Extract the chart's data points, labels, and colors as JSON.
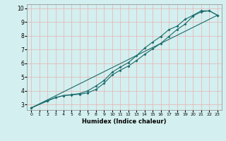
{
  "title": "",
  "xlabel": "Humidex (Indice chaleur)",
  "ylabel": "",
  "bg_color": "#d4efef",
  "grid_color": "#e8b0b0",
  "line_color": "#1a6b6b",
  "xlim": [
    -0.5,
    23.5
  ],
  "ylim": [
    2.6,
    10.3
  ],
  "xticks": [
    0,
    1,
    2,
    3,
    4,
    5,
    6,
    7,
    8,
    9,
    10,
    11,
    12,
    13,
    14,
    15,
    16,
    17,
    18,
    19,
    20,
    21,
    22,
    23
  ],
  "yticks": [
    3,
    4,
    5,
    6,
    7,
    8,
    9,
    10
  ],
  "line1_x": [
    0,
    2,
    3,
    4,
    5,
    6,
    7,
    8,
    9,
    10,
    11,
    12,
    13,
    14,
    15,
    16,
    17,
    18,
    19,
    20,
    21,
    22,
    23
  ],
  "line1_y": [
    2.75,
    3.25,
    3.5,
    3.65,
    3.7,
    3.75,
    3.85,
    4.1,
    4.55,
    5.15,
    5.5,
    5.8,
    6.2,
    6.65,
    7.05,
    7.45,
    7.95,
    8.45,
    8.85,
    9.45,
    9.75,
    9.82,
    9.5
  ],
  "line2_x": [
    0,
    2,
    3,
    4,
    5,
    6,
    7,
    8,
    9,
    10,
    11,
    12,
    13,
    14,
    15,
    16,
    17,
    18,
    19,
    20,
    21,
    22,
    23
  ],
  "line2_y": [
    2.75,
    3.28,
    3.5,
    3.65,
    3.72,
    3.8,
    4.0,
    4.35,
    4.75,
    5.35,
    5.72,
    6.05,
    6.55,
    7.1,
    7.55,
    7.95,
    8.45,
    8.7,
    9.2,
    9.5,
    9.82,
    9.82,
    9.5
  ],
  "line3_x": [
    0,
    23
  ],
  "line3_y": [
    2.75,
    9.5
  ]
}
